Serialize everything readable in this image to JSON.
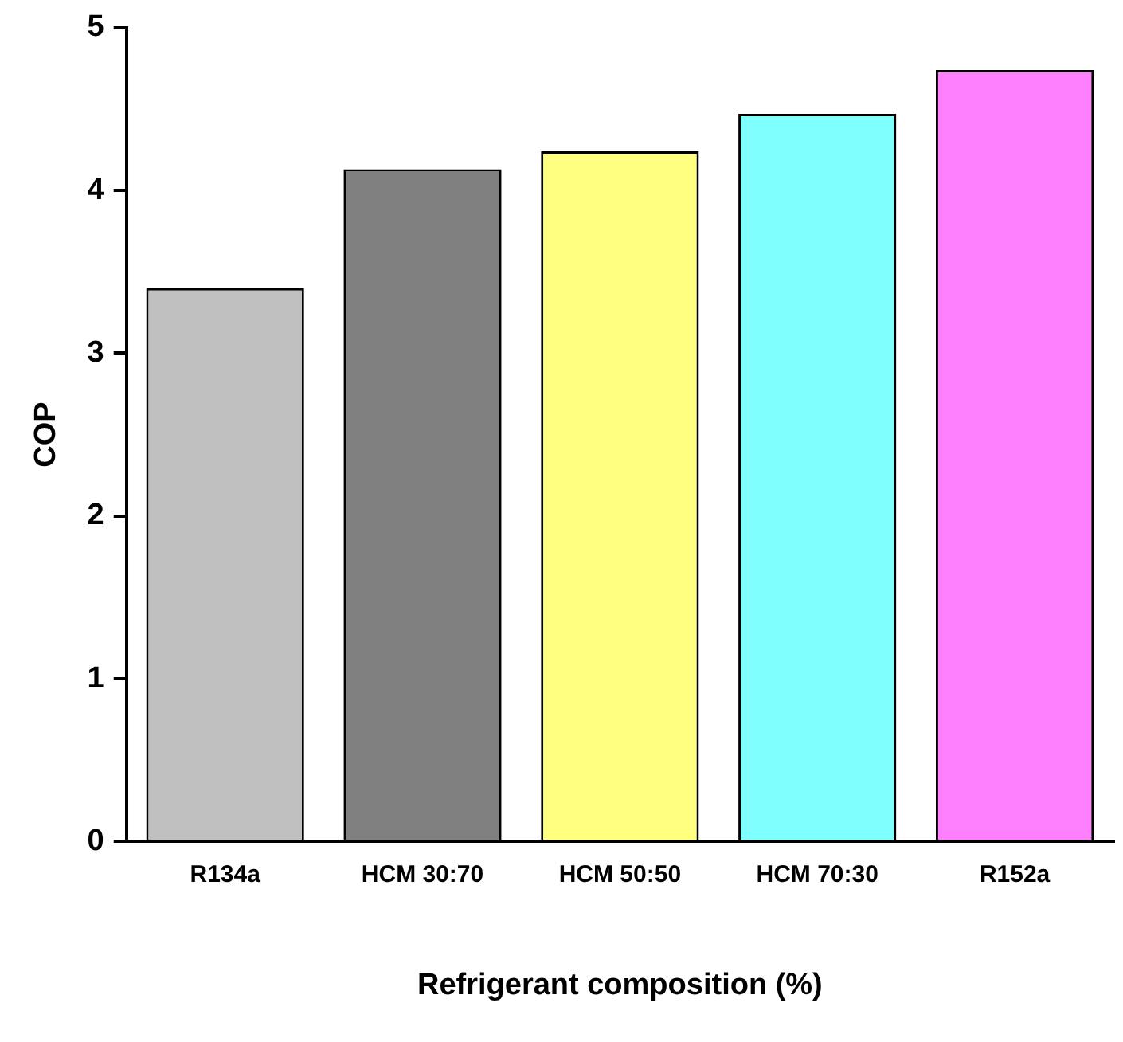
{
  "chart_data": {
    "type": "bar",
    "xlabel": "Refrigerant composition (%)",
    "ylabel": "COP",
    "categories": [
      "R134a",
      "HCM 30:70",
      "HCM 50:50",
      "HCM 70:30",
      "R152a"
    ],
    "values": [
      3.4,
      4.13,
      4.24,
      4.47,
      4.74
    ],
    "colors": [
      "#c0c0c0",
      "#808080",
      "#ffff80",
      "#80ffff",
      "#ff80ff"
    ],
    "ylim": [
      0,
      5
    ],
    "yticks": [
      0,
      1,
      2,
      3,
      4,
      5
    ],
    "grid": false,
    "legend": false
  }
}
